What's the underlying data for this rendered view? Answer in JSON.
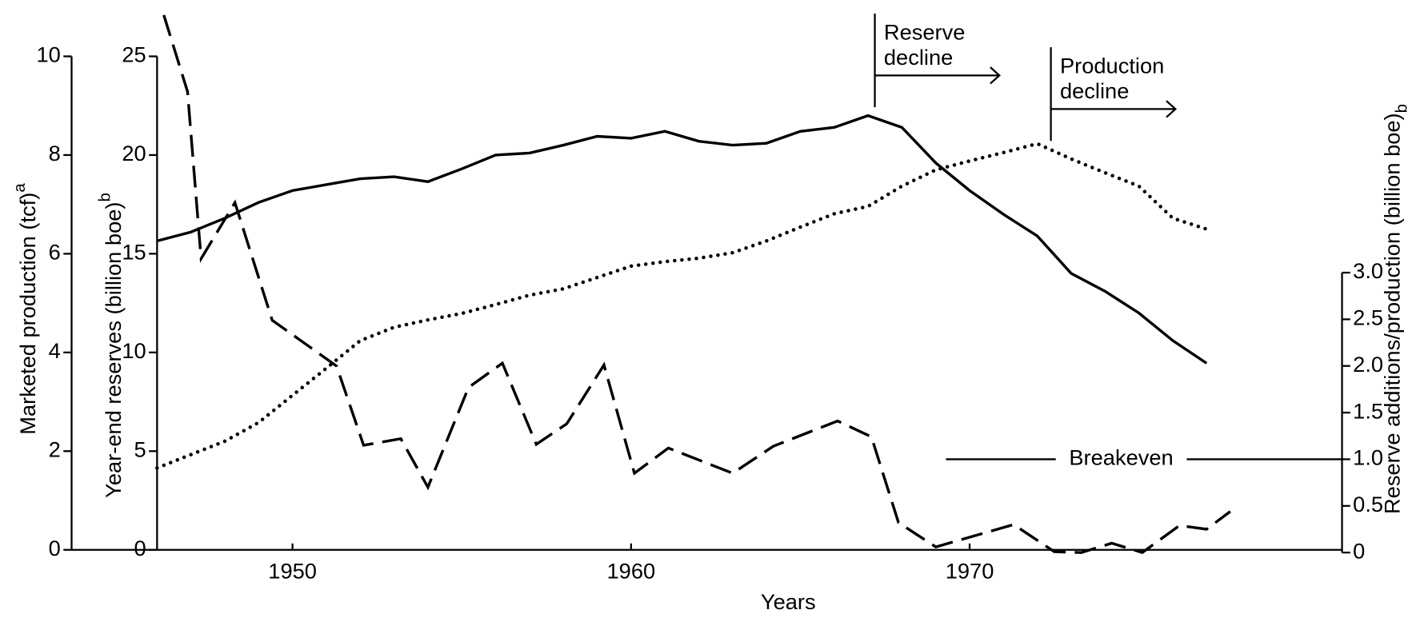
{
  "chart_data": {
    "type": "line",
    "xlabel": "Years",
    "ylabel": "Marketed production (tcf)",
    "ylabel_note": "a",
    "y2label": "Year-end reserves (billion boe)",
    "y2label_note": "b",
    "y3label": "Reserve additions/production  (billion boe)",
    "y3label_note": "b",
    "xlim": [
      1946,
      1981
    ],
    "xticks": [
      1950,
      1960,
      1970
    ],
    "ylim": [
      0,
      10
    ],
    "yticks": [
      0,
      2,
      4,
      6,
      8,
      10
    ],
    "y2lim": [
      0,
      25
    ],
    "y2ticks": [
      0,
      5,
      10,
      15,
      20,
      25
    ],
    "y3lim": [
      0,
      3
    ],
    "y3ticks": [
      0,
      0.5,
      {
        "value": 1,
        "label": "1.0"
      },
      1.5,
      {
        "value": 2,
        "label": "2.0"
      },
      2.5,
      {
        "value": 3,
        "label": "3.0"
      }
    ],
    "x": [
      1946,
      1947,
      1948,
      1949,
      1950,
      1951,
      1952,
      1953,
      1954,
      1955,
      1956,
      1957,
      1958,
      1959,
      1960,
      1961,
      1962,
      1963,
      1964,
      1965,
      1966,
      1967,
      1968,
      1969,
      1970,
      1971,
      1972,
      1973,
      1974,
      1975,
      1976,
      1977
    ],
    "series": [
      {
        "axis": "y2",
        "style": "solid",
        "color": "#000000",
        "values": [
          15.65,
          16.1,
          16.8,
          17.6,
          18.2,
          18.5,
          18.8,
          18.9,
          18.65,
          19.3,
          20.0,
          20.1,
          20.5,
          20.95,
          20.85,
          21.2,
          20.7,
          20.5,
          20.6,
          21.2,
          21.4,
          22.0,
          21.4,
          19.6,
          18.2,
          17.0,
          15.9,
          14.0,
          13.1,
          12.0,
          10.6,
          9.45
        ]
      },
      {
        "axis": "y",
        "style": "dotted",
        "color": "#000000",
        "values": [
          1.66,
          1.93,
          2.2,
          2.58,
          3.13,
          3.68,
          4.24,
          4.51,
          4.66,
          4.79,
          4.97,
          5.16,
          5.29,
          5.52,
          5.75,
          5.84,
          5.91,
          6.02,
          6.26,
          6.54,
          6.81,
          6.96,
          7.37,
          7.7,
          7.88,
          8.05,
          8.23,
          7.92,
          7.64,
          7.37,
          6.72,
          6.5
        ]
      },
      {
        "axis": "y3",
        "style": "dashed",
        "color": "#000000",
        "x": [
          1946.2,
          1946.9,
          1947.3,
          1948.3,
          1949.4,
          1951.3,
          1952.1,
          1953.2,
          1954.0,
          1955.2,
          1956.2,
          1957.2,
          1958.1,
          1959.2,
          1960.1,
          1961.1,
          1963.0,
          1964.2,
          1966.1,
          1967.1,
          1967.9,
          1969.0,
          1971.3,
          1972.5,
          1973.3,
          1974.2,
          1975.1,
          1976.2,
          1977.0,
          1977.7
        ],
        "values": [
          5.76,
          4.94,
          3.15,
          3.75,
          2.49,
          2.0,
          1.15,
          1.22,
          0.7,
          1.77,
          2.03,
          1.16,
          1.38,
          2.01,
          0.85,
          1.12,
          0.85,
          1.14,
          1.41,
          1.24,
          0.32,
          0.06,
          0.3,
          0.01,
          0,
          0.1,
          0,
          0.29,
          0.25,
          0.44
        ]
      }
    ],
    "annotations": [
      {
        "lines": [
          "Reserve",
          "decline"
        ],
        "x": 1967.2
      },
      {
        "lines": [
          "Production",
          "decline"
        ],
        "x": 1972.4
      },
      {
        "text": "Breakeven",
        "x": [
          1969.3,
          1981
        ],
        "y": 1,
        "axis": "y3"
      }
    ]
  }
}
